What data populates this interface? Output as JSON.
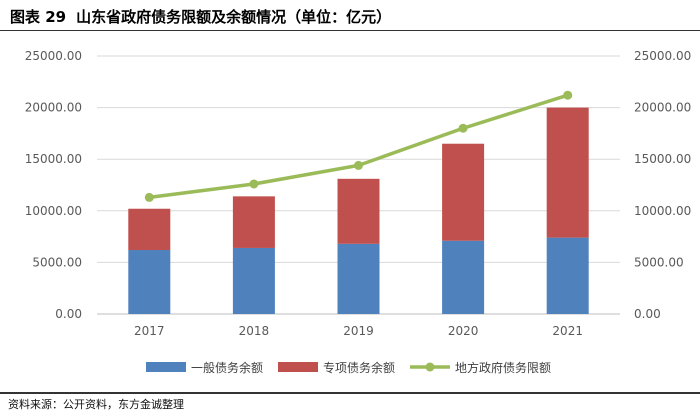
{
  "header": {
    "figure_number": "图表 29",
    "title": "山东省政府债务限额及余额情况（单位：亿元）"
  },
  "source": "资料来源：公开资料，东方金诚整理",
  "colors": {
    "general": "#4f81bd",
    "special": "#c0504d",
    "limit": "#9bbb59",
    "grid": "#d9d9d9"
  },
  "chart_data": {
    "type": "bar",
    "stacked": true,
    "title": "山东省政府债务限额及余额情况（单位：亿元）",
    "categories": [
      "2017",
      "2018",
      "2019",
      "2020",
      "2021"
    ],
    "series": [
      {
        "name": "一般债务余额",
        "type": "bar",
        "values": [
          6200,
          6400,
          6800,
          7100,
          7400
        ]
      },
      {
        "name": "专项债务余额",
        "type": "bar",
        "values": [
          4000,
          5000,
          6300,
          9400,
          12600
        ]
      },
      {
        "name": "地方政府债务限额",
        "type": "line",
        "axis": "right",
        "values": [
          11300,
          12600,
          14400,
          18000,
          21200
        ]
      }
    ],
    "ylim": [
      0,
      25000
    ],
    "y_ticks": [
      "0.00",
      "5000.00",
      "10000.00",
      "15000.00",
      "20000.00",
      "25000.00"
    ],
    "y2lim": [
      0,
      25000
    ],
    "y2_ticks": [
      "0.00",
      "5000.00",
      "10000.00",
      "15000.00",
      "20000.00",
      "25000.00"
    ],
    "legend_position": "bottom",
    "grid": true
  }
}
